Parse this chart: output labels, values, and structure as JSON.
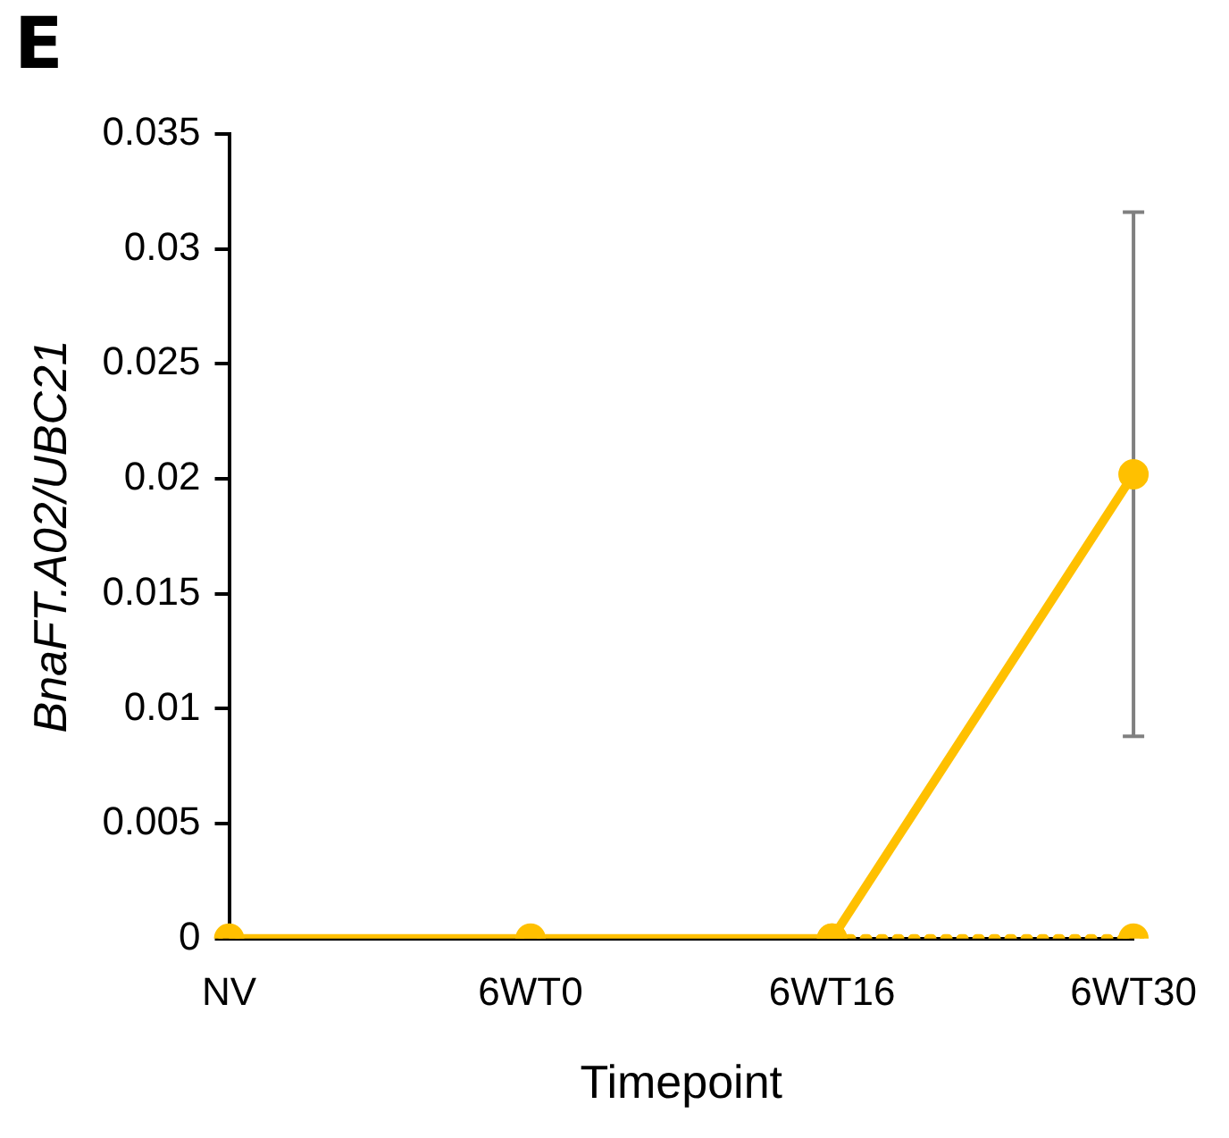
{
  "chart_data": {
    "type": "line",
    "title": "E",
    "xlabel": "Timepoint",
    "ylabel": "BnaFT.A02/UBC21",
    "categories": [
      "NV",
      "6WT0",
      "6WT16",
      "6WT30"
    ],
    "series": [
      {
        "color": "#ffc000",
        "values": [
          0,
          0,
          0,
          0.0202
        ],
        "errors": [
          null,
          null,
          null,
          [
            0.0088,
            0.0316
          ]
        ],
        "line_style": "solid"
      },
      {
        "color": "#ffc000",
        "values": [
          null,
          null,
          0,
          0
        ],
        "line_style": "dotted"
      }
    ],
    "ylim": [
      0,
      0.035
    ],
    "yticks": [
      {
        "value": 0,
        "label": "0"
      },
      0.005,
      0.01,
      0.015,
      0.02,
      0.025,
      0.03,
      0.035
    ],
    "grid": false,
    "legend": false,
    "marker": "circle"
  }
}
